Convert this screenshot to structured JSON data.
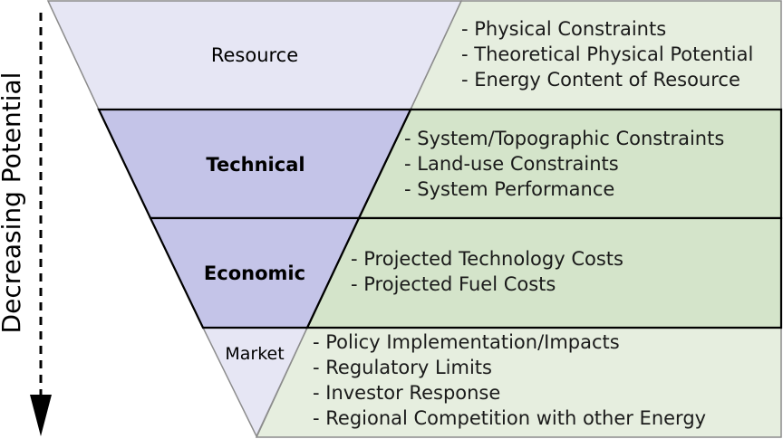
{
  "axis": {
    "label": "Decreasing Potential"
  },
  "levels": [
    {
      "name": "Resource",
      "bold": false,
      "bullets": [
        "- Physical Constraints",
        "- Theoretical Physical Potential",
        "- Energy Content of Resource"
      ]
    },
    {
      "name": "Technical",
      "bold": true,
      "bullets": [
        "- System/Topographic Constraints",
        "- Land-use Constraints",
        "- System Performance"
      ]
    },
    {
      "name": "Economic",
      "bold": true,
      "bullets": [
        "- Projected Technology Costs",
        "- Projected Fuel Costs"
      ]
    },
    {
      "name": "Market",
      "bold": false,
      "bullets": [
        "- Policy Implementation/Impacts",
        "- Regulatory Limits",
        "- Investor Response",
        "- Regional Competition with other Energy"
      ]
    }
  ],
  "colors": {
    "resource_funnel": "#e6e6f4",
    "highlight_funnel": "#c4c4e8",
    "market_funnel": "#e6e6f4",
    "light_box": "#e6eedf",
    "highlight_box": "#d4e4ca",
    "light_border": "#8c8c8c",
    "highlight_border": "#000000"
  }
}
